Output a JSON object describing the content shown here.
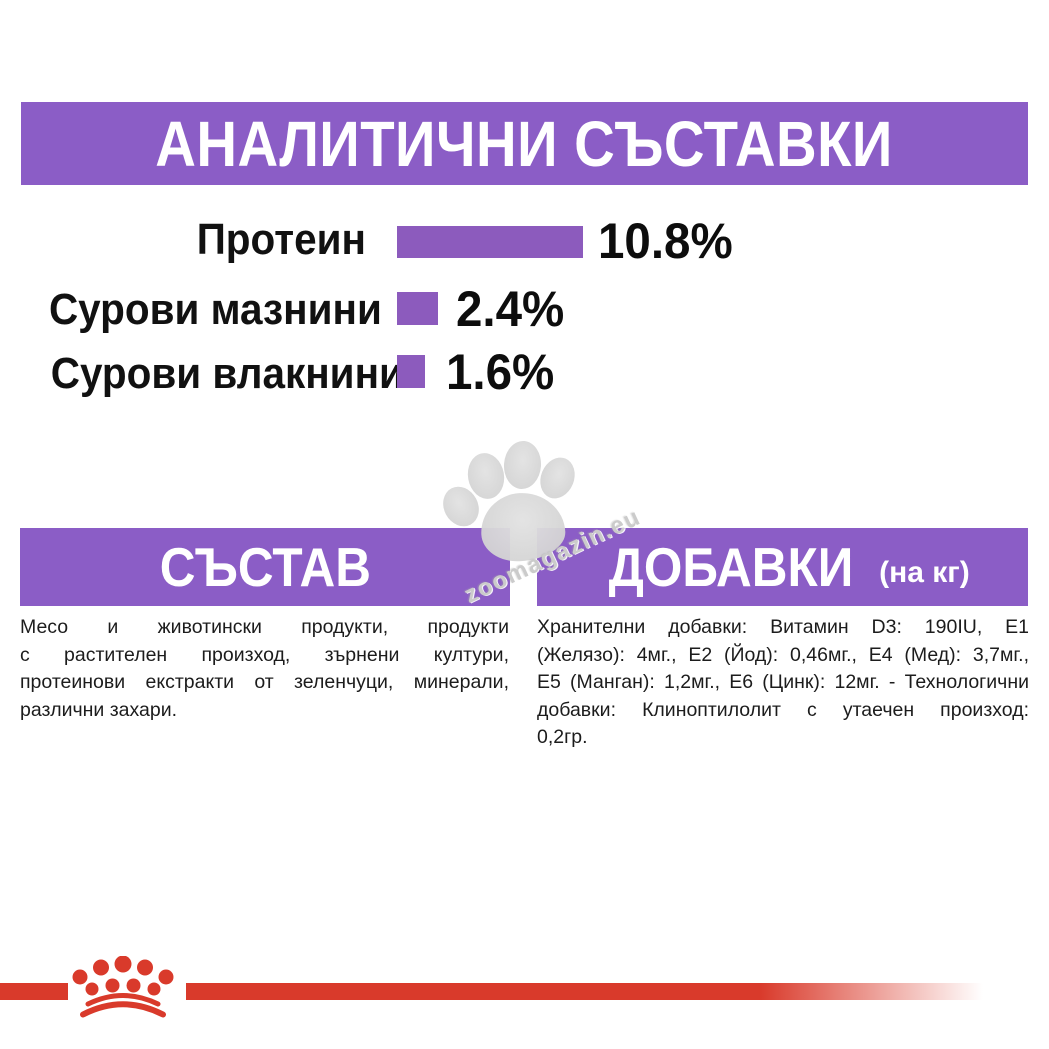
{
  "page": {
    "background": "#ffffff"
  },
  "colors": {
    "banner_purple": "#8b5dc6",
    "bar_purple": "#8c5bbd",
    "brand_red": "#d93a2b",
    "watermark_gray": "#d4d4d4",
    "text_black": "#1c1c1c"
  },
  "header": {
    "title": "АНАЛИТИЧНИ СЪСТАВКИ"
  },
  "chart_data": {
    "type": "bar",
    "orientation": "horizontal",
    "title": "АНАЛИТИЧНИ СЪСТАВКИ",
    "categories": [
      "Протеин",
      "Сурови мазнини",
      "Сурови влакнини"
    ],
    "values": [
      10.8,
      2.4,
      1.6
    ],
    "value_labels": [
      "10.8%",
      "2.4%",
      "1.6%"
    ],
    "unit": "%",
    "xlim": [
      0,
      11
    ],
    "grid": false,
    "legend": false,
    "bar_color": "#8c5bbd"
  },
  "watermark": {
    "text": "zoomagazin.eu",
    "icon": "paw-print"
  },
  "sections": {
    "composition": {
      "title": "СЪСТАВ",
      "body": "Месо и животински продукти, продукти с растителен произход, зърнени култури, протеинови екстракти от зеленчуци, минерали, различни захари.",
      "body_lines": [
        "Месо и животински продукти, продукти",
        "с растителен произход, зърнени култури,",
        "протеинови екстракти от зеленчуци, минерали,",
        "различни захари."
      ]
    },
    "additives": {
      "title": "ДОБАВКИ",
      "title_suffix": "(на кг)",
      "body": "Хранителни добавки: Витамин D3: 190IU, E1 (Желязо): 4мг., E2 (Йод): 0,46мг., E4 (Мед): 3,7мг., E5 (Манган): 1,2мг., E6 (Цинк): 12мг. - Технологични добавки: Клиноптилолит с утаечен произход: 0,2гр.",
      "body_lines": [
        "Хранителни добавки: Витамин D3: 190IU, E1",
        "(Желязо): 4мг., E2 (Йод): 0,46мг., E4 (Мед): 3,7мг.,",
        "E5 (Манган): 1,2мг., E6 (Цинк): 12мг. - Технологични",
        "добавки: Клиноптилолит с утаечен произход:",
        "0,2гр."
      ]
    }
  },
  "footer": {
    "brand_icon": "royal-canin-crown"
  }
}
